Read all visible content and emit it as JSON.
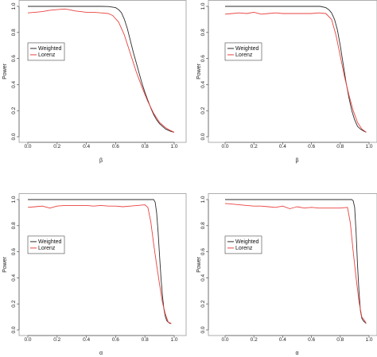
{
  "colors": {
    "weighted": "#2b2b2b",
    "lorenz": "#e8423f",
    "axis": "#555555"
  },
  "chart_data": [
    {
      "type": "line",
      "xlabel": "β",
      "ylabel": "Power",
      "xlim": [
        0,
        1
      ],
      "ylim": [
        0,
        1
      ],
      "xticks": [
        "0.0",
        "0.2",
        "0.4",
        "0.6",
        "0.8",
        "1.0"
      ],
      "yticks": [
        "0.0",
        "0.2",
        "0.4",
        "0.6",
        "0.8",
        "1.0"
      ],
      "legend": {
        "placement": "middle-left"
      },
      "series": [
        {
          "name": "Weighted",
          "color": "#2b2b2b",
          "x": [
            0.0,
            0.1,
            0.2,
            0.3,
            0.4,
            0.5,
            0.55,
            0.6,
            0.62,
            0.64,
            0.66,
            0.68,
            0.7,
            0.72,
            0.74,
            0.76,
            0.78,
            0.8,
            0.82,
            0.84,
            0.86,
            0.88,
            0.9,
            0.92,
            0.94,
            0.96,
            0.98,
            1.0
          ],
          "y": [
            1.0,
            1.0,
            1.0,
            1.0,
            1.0,
            1.0,
            0.999,
            0.99,
            0.975,
            0.95,
            0.9,
            0.83,
            0.74,
            0.65,
            0.57,
            0.49,
            0.41,
            0.34,
            0.28,
            0.22,
            0.17,
            0.13,
            0.1,
            0.08,
            0.06,
            0.05,
            0.04,
            0.035
          ]
        },
        {
          "name": "Lorenz",
          "color": "#e8423f",
          "x": [
            0.0,
            0.05,
            0.1,
            0.15,
            0.2,
            0.25,
            0.28,
            0.32,
            0.36,
            0.4,
            0.45,
            0.5,
            0.55,
            0.58,
            0.62,
            0.66,
            0.7,
            0.74,
            0.78,
            0.82,
            0.86,
            0.9,
            0.94,
            0.97,
            1.0
          ],
          "y": [
            0.95,
            0.955,
            0.96,
            0.97,
            0.975,
            0.98,
            0.975,
            0.965,
            0.96,
            0.955,
            0.955,
            0.95,
            0.945,
            0.93,
            0.88,
            0.78,
            0.64,
            0.5,
            0.38,
            0.27,
            0.18,
            0.11,
            0.07,
            0.05,
            0.035
          ]
        }
      ]
    },
    {
      "type": "line",
      "xlabel": "β",
      "ylabel": "Power",
      "xlim": [
        0,
        1
      ],
      "ylim": [
        0,
        1
      ],
      "xticks": [
        "0.0",
        "0.2",
        "0.4",
        "0.6",
        "0.8",
        "1.0"
      ],
      "yticks": [
        "0.0",
        "0.2",
        "0.4",
        "0.6",
        "0.8",
        "1.0"
      ],
      "legend": {
        "placement": "middle-left"
      },
      "series": [
        {
          "name": "Weighted",
          "color": "#2b2b2b",
          "x": [
            0.0,
            0.1,
            0.2,
            0.3,
            0.4,
            0.5,
            0.6,
            0.66,
            0.7,
            0.72,
            0.74,
            0.76,
            0.78,
            0.8,
            0.82,
            0.84,
            0.86,
            0.88,
            0.9,
            0.92,
            0.94,
            0.96,
            0.98
          ],
          "y": [
            1.0,
            1.0,
            1.0,
            1.0,
            1.0,
            1.0,
            1.0,
            1.0,
            0.99,
            0.975,
            0.95,
            0.9,
            0.82,
            0.7,
            0.56,
            0.42,
            0.3,
            0.2,
            0.13,
            0.08,
            0.06,
            0.045,
            0.035
          ]
        },
        {
          "name": "Lorenz",
          "color": "#e8423f",
          "x": [
            0.0,
            0.05,
            0.1,
            0.15,
            0.2,
            0.25,
            0.3,
            0.35,
            0.4,
            0.45,
            0.5,
            0.55,
            0.6,
            0.65,
            0.7,
            0.74,
            0.77,
            0.8,
            0.83,
            0.86,
            0.89,
            0.92,
            0.95,
            0.98
          ],
          "y": [
            0.94,
            0.945,
            0.95,
            0.945,
            0.955,
            0.94,
            0.945,
            0.95,
            0.945,
            0.945,
            0.945,
            0.945,
            0.945,
            0.95,
            0.945,
            0.9,
            0.78,
            0.62,
            0.46,
            0.32,
            0.2,
            0.11,
            0.06,
            0.035
          ]
        }
      ]
    },
    {
      "type": "line",
      "xlabel": "α",
      "ylabel": "Power",
      "xlim": [
        0,
        1
      ],
      "ylim": [
        0,
        1
      ],
      "xticks": [
        "0.0",
        "0.2",
        "0.4",
        "0.6",
        "0.8",
        "1.0"
      ],
      "yticks": [
        "0.0",
        "0.2",
        "0.4",
        "0.6",
        "0.8",
        "1.0"
      ],
      "legend": {
        "placement": "middle-left"
      },
      "series": [
        {
          "name": "Weighted",
          "color": "#2b2b2b",
          "x": [
            0.0,
            0.1,
            0.2,
            0.3,
            0.4,
            0.5,
            0.6,
            0.7,
            0.8,
            0.86,
            0.87,
            0.88,
            0.89,
            0.9,
            0.91,
            0.92,
            0.93,
            0.94,
            0.95,
            0.96,
            0.97,
            0.98
          ],
          "y": [
            1.0,
            1.0,
            1.0,
            1.0,
            1.0,
            1.0,
            1.0,
            1.0,
            1.0,
            1.0,
            0.98,
            0.9,
            0.75,
            0.57,
            0.4,
            0.26,
            0.16,
            0.1,
            0.07,
            0.06,
            0.05,
            0.05
          ]
        },
        {
          "name": "Lorenz",
          "color": "#e8423f",
          "x": [
            0.0,
            0.05,
            0.1,
            0.15,
            0.2,
            0.25,
            0.3,
            0.35,
            0.4,
            0.45,
            0.5,
            0.55,
            0.6,
            0.65,
            0.7,
            0.75,
            0.8,
            0.82,
            0.84,
            0.86,
            0.88,
            0.9,
            0.92,
            0.94,
            0.96,
            0.98
          ],
          "y": [
            0.94,
            0.945,
            0.95,
            0.935,
            0.95,
            0.955,
            0.955,
            0.955,
            0.955,
            0.95,
            0.955,
            0.95,
            0.95,
            0.945,
            0.95,
            0.955,
            0.96,
            0.94,
            0.83,
            0.66,
            0.5,
            0.35,
            0.21,
            0.12,
            0.06,
            0.05
          ]
        }
      ]
    },
    {
      "type": "line",
      "xlabel": "α",
      "ylabel": "Power",
      "xlim": [
        0,
        1
      ],
      "ylim": [
        0,
        1
      ],
      "xticks": [
        "0.0",
        "0.2",
        "0.4",
        "0.6",
        "0.8",
        "1.0"
      ],
      "yticks": [
        "0.0",
        "0.2",
        "0.4",
        "0.6",
        "0.8",
        "1.0"
      ],
      "legend": {
        "placement": "middle-left"
      },
      "series": [
        {
          "name": "Weighted",
          "color": "#2b2b2b",
          "x": [
            0.0,
            0.1,
            0.2,
            0.3,
            0.4,
            0.5,
            0.6,
            0.7,
            0.8,
            0.86,
            0.88,
            0.89,
            0.9,
            0.91,
            0.92,
            0.93,
            0.94,
            0.95,
            0.96,
            0.97,
            0.98
          ],
          "y": [
            1.0,
            1.0,
            1.0,
            1.0,
            1.0,
            1.0,
            1.0,
            1.0,
            1.0,
            1.0,
            1.0,
            0.99,
            0.94,
            0.75,
            0.5,
            0.3,
            0.15,
            0.09,
            0.07,
            0.06,
            0.05
          ]
        },
        {
          "name": "Lorenz",
          "color": "#e8423f",
          "x": [
            0.0,
            0.05,
            0.1,
            0.15,
            0.2,
            0.25,
            0.3,
            0.35,
            0.4,
            0.45,
            0.5,
            0.55,
            0.6,
            0.65,
            0.7,
            0.75,
            0.8,
            0.85,
            0.87,
            0.89,
            0.91,
            0.93,
            0.95,
            0.97,
            0.98
          ],
          "y": [
            0.97,
            0.965,
            0.96,
            0.955,
            0.95,
            0.95,
            0.945,
            0.94,
            0.95,
            0.93,
            0.945,
            0.935,
            0.94,
            0.935,
            0.935,
            0.935,
            0.935,
            0.94,
            0.82,
            0.6,
            0.4,
            0.22,
            0.1,
            0.07,
            0.05
          ]
        }
      ]
    }
  ]
}
